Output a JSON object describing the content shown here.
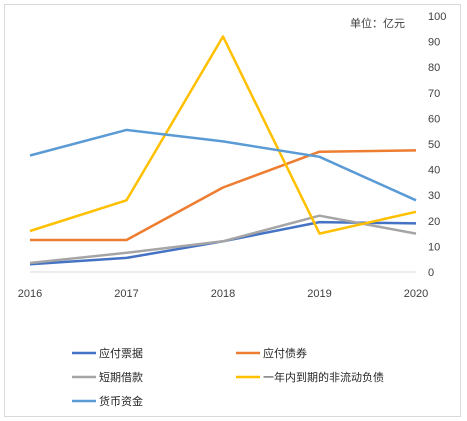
{
  "chart_data": {
    "type": "line",
    "unit_label": "单位：亿元",
    "x": [
      "2016",
      "2017",
      "2018",
      "2019",
      "2020"
    ],
    "ylim": [
      0,
      100
    ],
    "yticks": [
      0,
      10,
      20,
      30,
      40,
      50,
      60,
      70,
      80,
      90,
      100
    ],
    "grid": false,
    "legend_position": "bottom",
    "series": [
      {
        "name": "应付票据",
        "color": "#4472C4",
        "values": [
          3,
          5.5,
          12,
          19.5,
          19
        ]
      },
      {
        "name": "应付债券",
        "color": "#ED7D31",
        "values": [
          12.5,
          12.5,
          33,
          47,
          47.5
        ]
      },
      {
        "name": "短期借款",
        "color": "#A5A5A5",
        "values": [
          3.5,
          7.5,
          12,
          22,
          15
        ]
      },
      {
        "name": "一年内到期的非流动负债",
        "color": "#FFC000",
        "values": [
          16,
          28,
          92,
          15,
          23.5
        ]
      },
      {
        "name": "货币资金",
        "color": "#5B9BD5",
        "values": [
          45.5,
          55.5,
          51,
          45,
          28
        ]
      }
    ]
  }
}
